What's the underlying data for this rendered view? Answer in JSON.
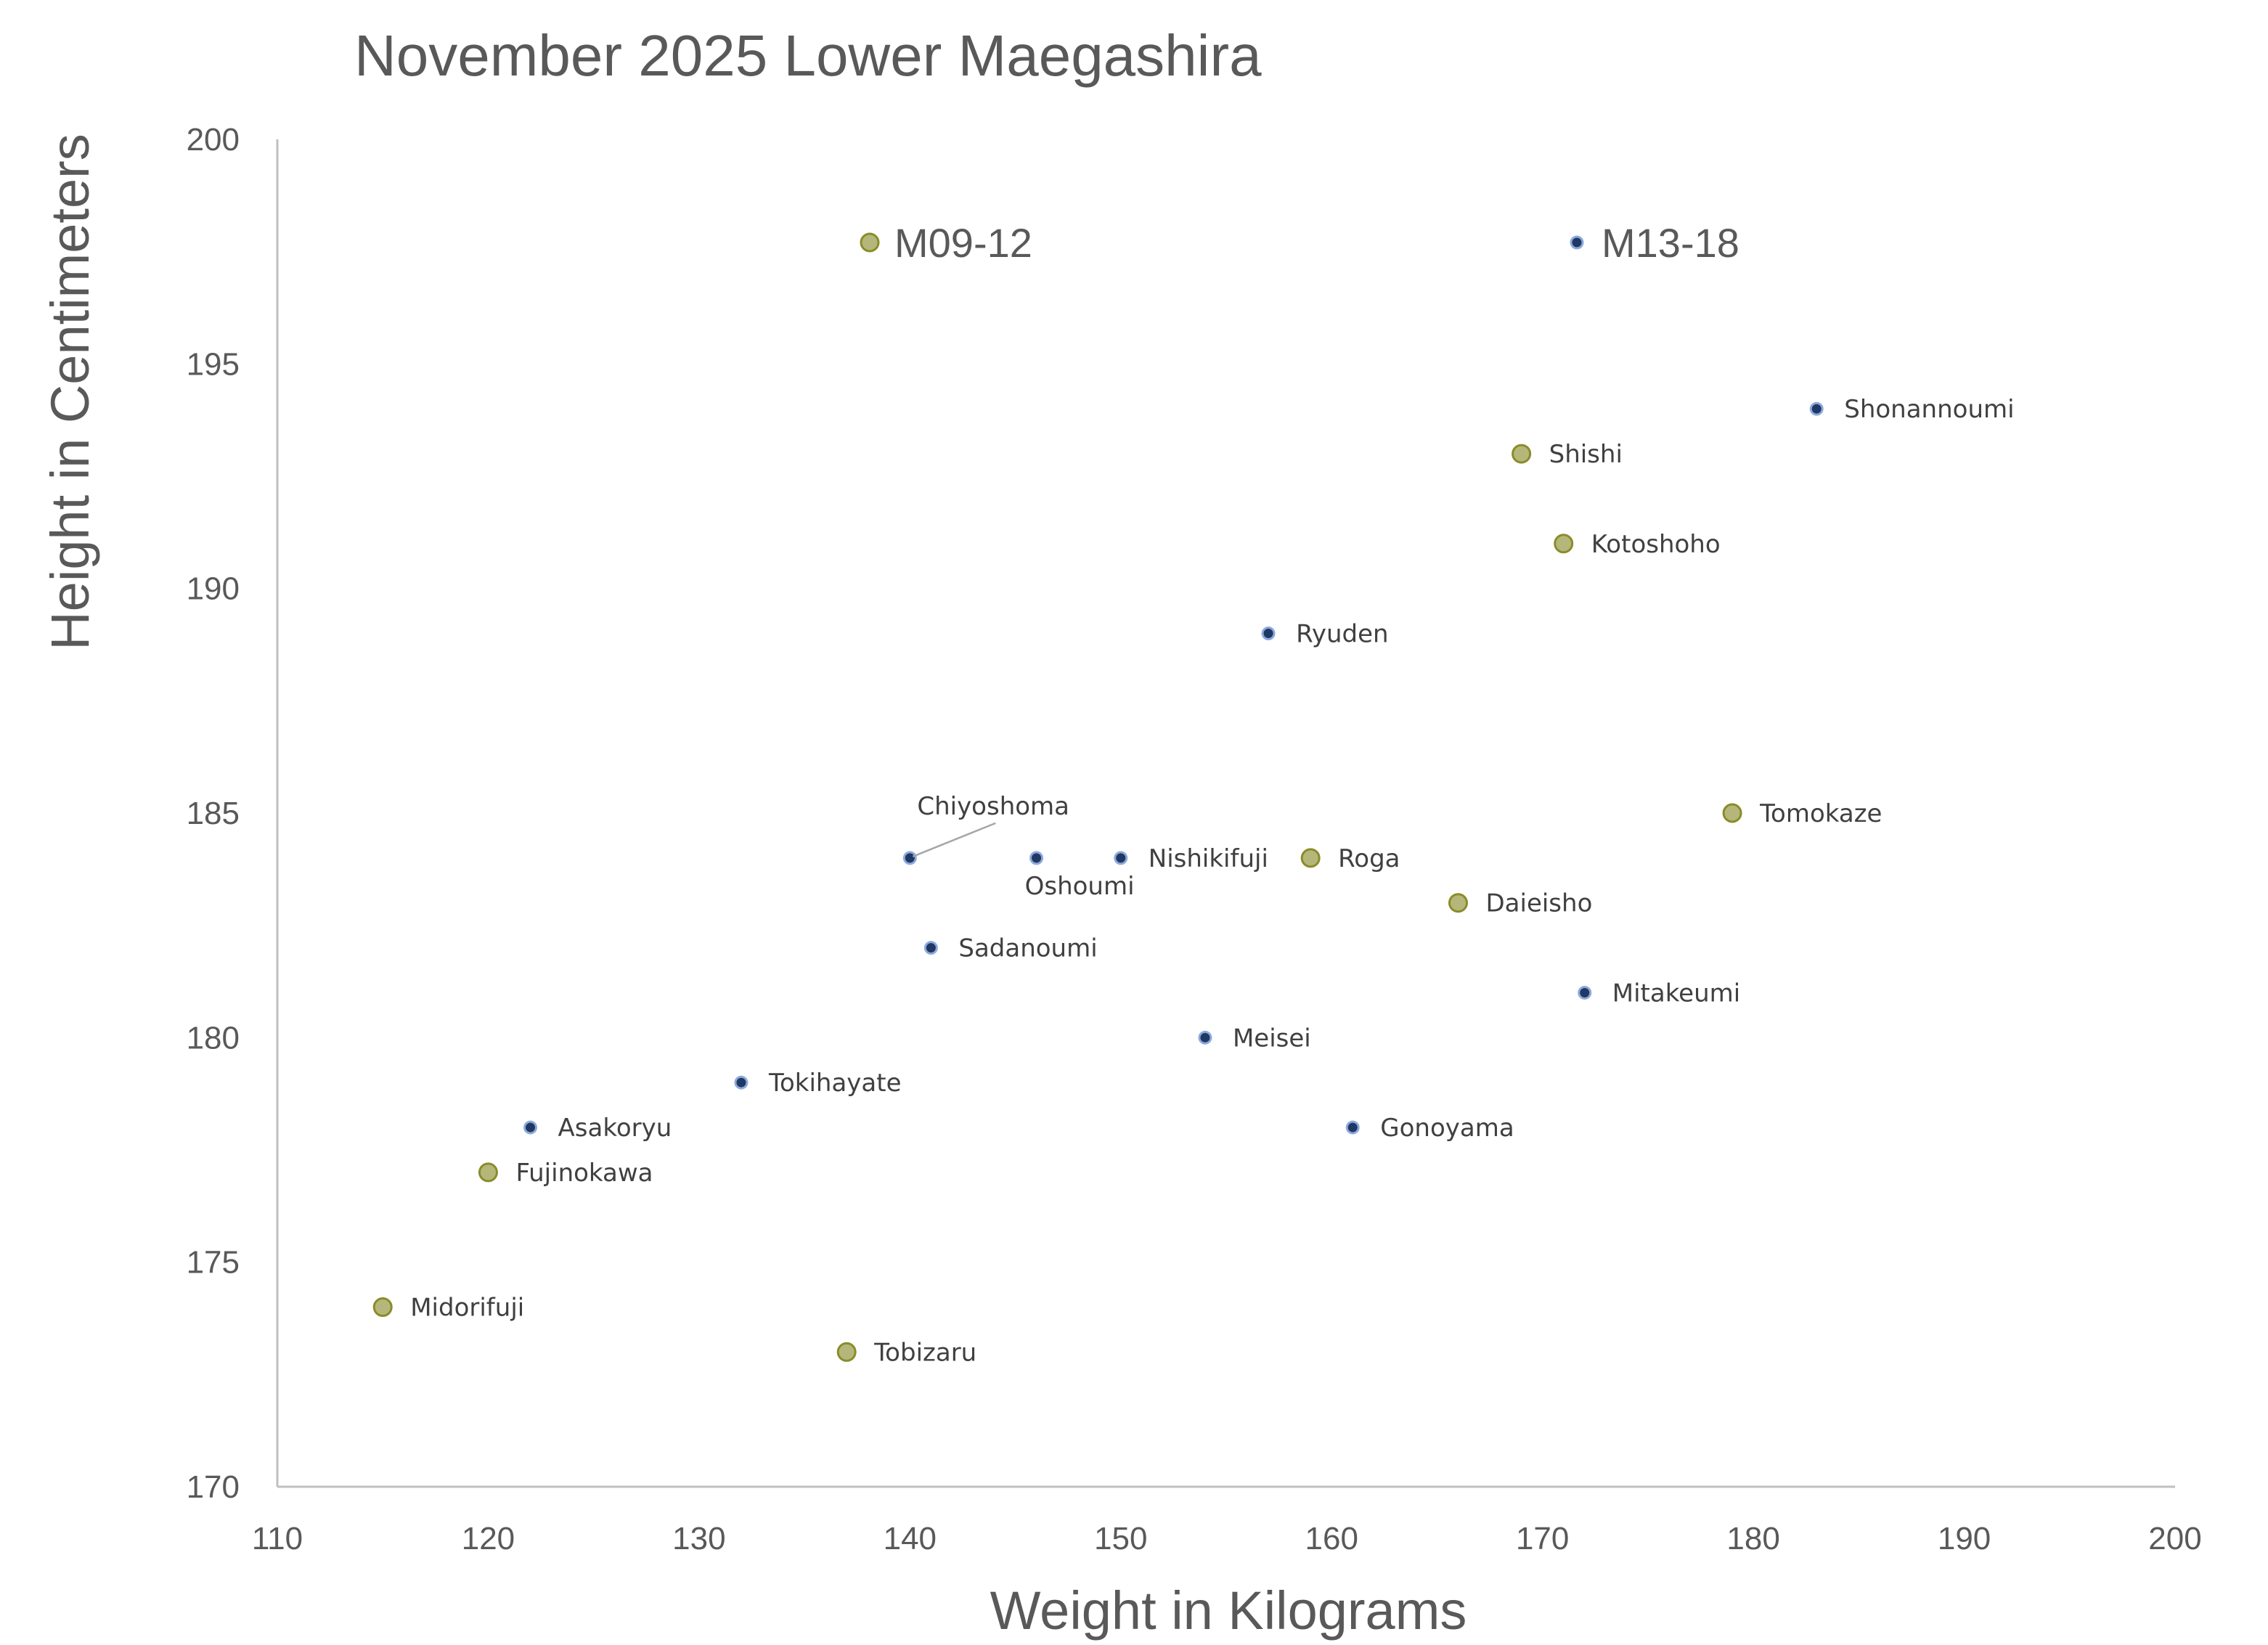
{
  "chart_data": {
    "type": "scatter",
    "title": "November 2025 Lower Maegashira",
    "xlabel": "Weight in Kilograms",
    "ylabel": "Height in Centimeters",
    "xlim": [
      110,
      200
    ],
    "ylim": [
      170,
      200
    ],
    "xticks": [
      110,
      120,
      130,
      140,
      150,
      160,
      170,
      180,
      190,
      200
    ],
    "yticks": [
      170,
      175,
      180,
      185,
      190,
      195,
      200
    ],
    "grid": false,
    "legend": "top",
    "series": [
      {
        "name": "M09-12",
        "color": "#b5b77a",
        "edge": "#8a8c2a",
        "points": [
          {
            "label": "Shishi",
            "x": 169,
            "y": 193
          },
          {
            "label": "Kotoshoho",
            "x": 171,
            "y": 191
          },
          {
            "label": "Tomokaze",
            "x": 179,
            "y": 185
          },
          {
            "label": "Roga",
            "x": 159,
            "y": 184
          },
          {
            "label": "Daieisho",
            "x": 166,
            "y": 183
          },
          {
            "label": "Fujinokawa",
            "x": 120,
            "y": 177
          },
          {
            "label": "Midorifuji",
            "x": 115,
            "y": 174
          },
          {
            "label": "Tobizaru",
            "x": 137,
            "y": 173
          }
        ]
      },
      {
        "name": "M13-18",
        "color": "#1f3864",
        "edge": "#8eaadb",
        "points": [
          {
            "label": "Shonannoumi",
            "x": 183,
            "y": 194
          },
          {
            "label": "Ryuden",
            "x": 157,
            "y": 189
          },
          {
            "label": "Chiyoshoma",
            "x": 140,
            "y": 184
          },
          {
            "label": "Oshoumi",
            "x": 146,
            "y": 184
          },
          {
            "label": "Nishikifuji",
            "x": 150,
            "y": 184
          },
          {
            "label": "Sadanoumi",
            "x": 141,
            "y": 182
          },
          {
            "label": "Mitakeumi",
            "x": 172,
            "y": 181
          },
          {
            "label": "Meisei",
            "x": 154,
            "y": 180
          },
          {
            "label": "Tokihayate",
            "x": 132,
            "y": 179
          },
          {
            "label": "Asakoryu",
            "x": 122,
            "y": 178
          },
          {
            "label": "Gonoyama",
            "x": 161,
            "y": 178
          }
        ]
      }
    ]
  }
}
